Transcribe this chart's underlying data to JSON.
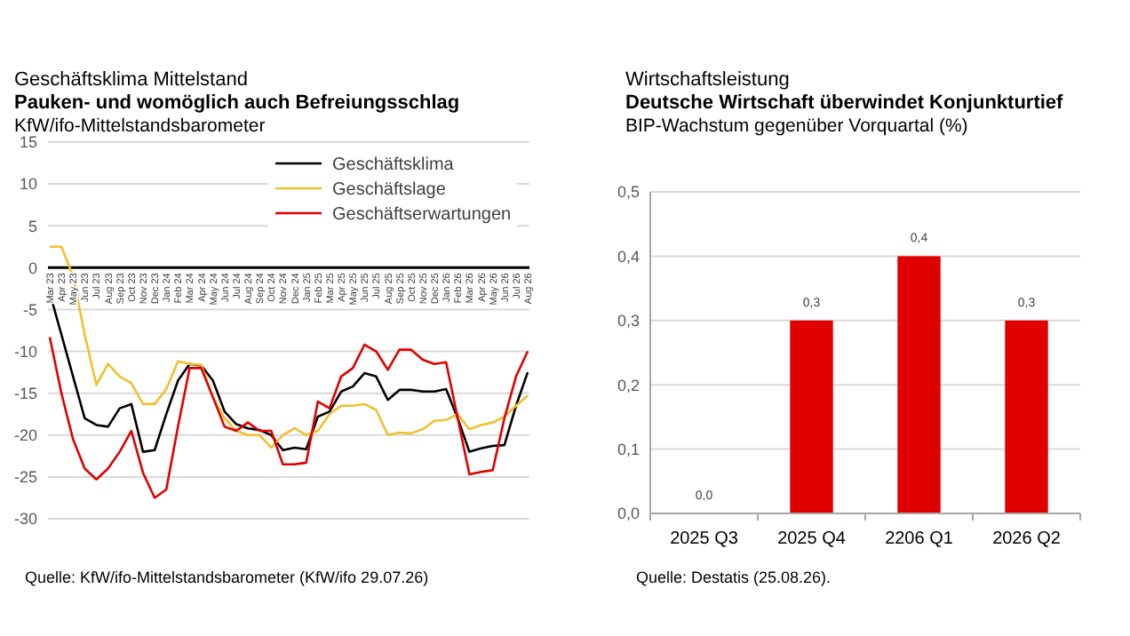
{
  "chart_data": [
    {
      "type": "line",
      "title": "Geschäftsklima Mittelstand",
      "subtitle": "Pauken- und womöglich auch Befreiungsschlag",
      "annotations": [
        "KfW/ifo-Mittelstandsbarometer",
        "Quelle: KfW/ifo-Mittelstandsbarometer (KfW/ifo 29.07.26)"
      ],
      "categories": [
        "Mar 23",
        "Apr 23",
        "May 23",
        "Jun 23",
        "Jul 23",
        "Aug 23",
        "Sep 23",
        "Oct 23",
        "Nov 23",
        "Dec 23",
        "Jan 24",
        "Feb 24",
        "Mar 24",
        "Apr 24",
        "May 24",
        "Jun 24",
        "Jul 24",
        "Aug 24",
        "Sep 24",
        "Oct 24",
        "Nov 24",
        "Dec 24",
        "Jan 25",
        "Feb 25",
        "Mar 25",
        "Apr 25",
        "May 25",
        "Jun 25",
        "Jul 25",
        "Aug 25",
        "Sep 25",
        "Oct 25",
        "Nov 25",
        "Dec 25",
        "Jan 26",
        "Feb 26",
        "Mar 26",
        "Apr 26",
        "May 26",
        "Jun 26",
        "Jul 26",
        "Aug 26"
      ],
      "series": [
        {
          "name": "Geschäftsklima",
          "color": "#000000",
          "values": [
            -3,
            -8,
            -13,
            -18,
            -18.8,
            -19,
            -16.8,
            -16.3,
            -22,
            -21.8,
            -17.5,
            -13.5,
            -11.5,
            -11.7,
            -13.5,
            -17.2,
            -18.7,
            -19.2,
            -19.4,
            -20,
            -21.8,
            -21.5,
            -21.7,
            -17.8,
            -17.2,
            -14.8,
            -14.2,
            -12.6,
            -13,
            -15.8,
            -14.6,
            -14.6,
            -14.8,
            -14.8,
            -14.5,
            -18,
            -22,
            -21.6,
            -21.3,
            -21.2,
            -16.5,
            -12.5
          ]
        },
        {
          "name": "Geschäftslage",
          "color": "#f0c030",
          "values": [
            2.5,
            2.5,
            -1,
            -8,
            -14,
            -11.5,
            -13,
            -13.8,
            -16.3,
            -16.3,
            -14.5,
            -11.2,
            -11.5,
            -11.6,
            -15.5,
            -18,
            -19.5,
            -20,
            -20,
            -21.5,
            -20,
            -19.2,
            -20,
            -19.5,
            -17.5,
            -16.5,
            -16.5,
            -16.3,
            -17,
            -20,
            -19.7,
            -19.8,
            -19.3,
            -18.3,
            -18.2,
            -17.5,
            -19.3,
            -18.8,
            -18.5,
            -17.8,
            -16.5,
            -15.3
          ]
        },
        {
          "name": "Geschäftserwartungen",
          "color": "#e00000",
          "values": [
            -8.3,
            -15,
            -20.5,
            -24,
            -25.3,
            -24,
            -22,
            -19.5,
            -24.5,
            -27.5,
            -26.5,
            -19,
            -12,
            -12,
            -15.5,
            -19,
            -19.5,
            -18.5,
            -19.5,
            -19.5,
            -23.5,
            -23.5,
            -23.3,
            -16,
            -16.8,
            -13,
            -12,
            -9.2,
            -10,
            -12.2,
            -9.8,
            -9.8,
            -11,
            -11.5,
            -11.3,
            -18,
            -24.7,
            -24.4,
            -24.2,
            -18,
            -13,
            -10
          ]
        }
      ],
      "ylim": [
        -30,
        15
      ],
      "yticks": [
        -30,
        -25,
        -20,
        -15,
        -10,
        -5,
        0,
        5,
        10,
        15
      ],
      "grid": "y",
      "legend": "top right",
      "line_style": "solid",
      "marker": "none"
    },
    {
      "type": "bar",
      "title": "Wirtschaftsleistung",
      "subtitle": "Deutsche Wirtschaft überwindet Konjunkturtief",
      "annotations": [
        "BIP-Wachstum gegenüber Vorquartal (%)",
        "Quelle: Destatis (25.08.26)."
      ],
      "categories": [
        "2025 Q3",
        "2025 Q4",
        "2206 Q1",
        "2026 Q2"
      ],
      "values": [
        0,
        0.3,
        0.4,
        0.3
      ],
      "color": "#e00000",
      "value_labels": [
        "0,0",
        "0,3",
        "0,4",
        "0,3"
      ],
      "ylim": [
        0,
        0.5
      ],
      "yticks": [
        {
          "value": 0,
          "label": "0,0"
        },
        {
          "value": 0.1,
          "label": "0,1"
        },
        {
          "value": 0.2,
          "label": "0,2"
        },
        {
          "value": 0.3,
          "label": "0,3"
        },
        {
          "value": 0.4,
          "label": "0,4"
        },
        {
          "value": 0.5,
          "label": "0,5"
        }
      ],
      "grid": "y"
    }
  ]
}
